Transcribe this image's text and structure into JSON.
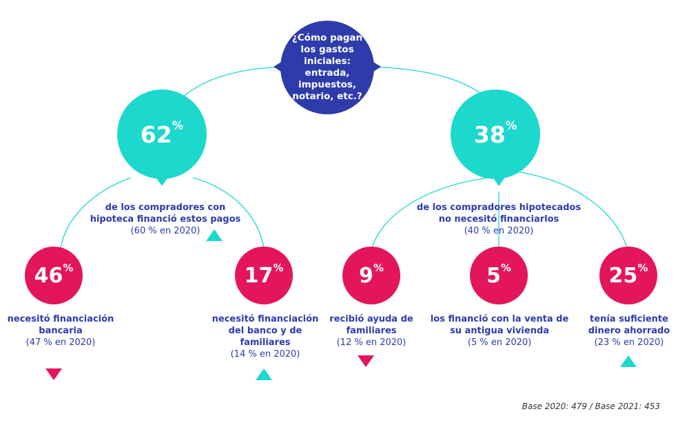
{
  "question": "¿Cómo pagan los gastos iniciales: entrada, impuestos, notario, etc.?",
  "colors": {
    "root": "#2d3bab",
    "big": "#1dd8cc",
    "small": "#e3165b",
    "text": "#2d3bab"
  },
  "left": {
    "value": "62",
    "unit": "%",
    "desc": "de los compradores con hipoteca financió estos pagos",
    "compare": "(60 % en 2020)",
    "trend": "up",
    "children": [
      {
        "value": "46",
        "unit": "%",
        "desc": "necesitó financiación bancaria",
        "compare": "(47 % en 2020)",
        "trend": "down"
      },
      {
        "value": "17",
        "unit": "%",
        "desc": "necesitó financiación del banco y de familiares",
        "compare": "(14 % en 2020)",
        "trend": "up"
      }
    ]
  },
  "right": {
    "value": "38",
    "unit": "%",
    "desc": "de los compradores hipotecados no necesitó financiarlos",
    "compare": "(40 % en 2020)",
    "children": [
      {
        "value": "9",
        "unit": "%",
        "desc": "recibió ayuda de familiares",
        "compare": "(12 % en 2020)",
        "trend": "down"
      },
      {
        "value": "5",
        "unit": "%",
        "desc": "los financió con la venta de su antigua vivienda",
        "compare": "(5 % en 2020)"
      },
      {
        "value": "25",
        "unit": "%",
        "desc": "tenía suficiente dinero ahorrado",
        "compare": "(23 % en 2020)",
        "trend": "up"
      }
    ]
  },
  "base": "Base 2020: 479 / Base 2021: 453"
}
